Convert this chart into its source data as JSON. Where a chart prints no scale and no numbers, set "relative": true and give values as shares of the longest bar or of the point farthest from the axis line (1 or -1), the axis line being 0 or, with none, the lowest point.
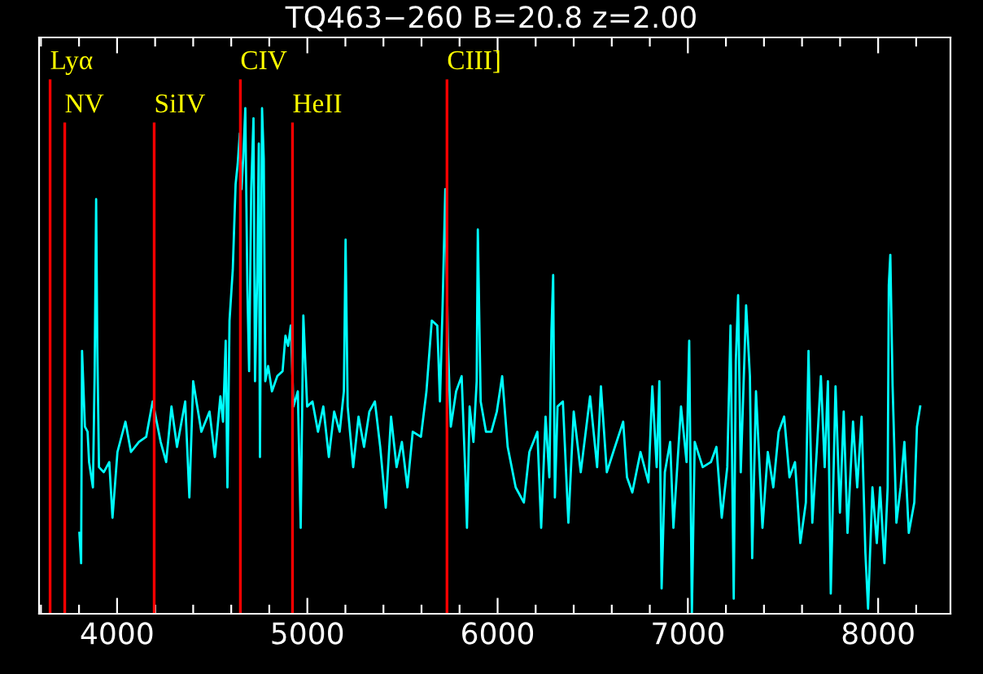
{
  "chart_data": {
    "type": "line",
    "title": "TQ463−260 B=20.8 z=2.00",
    "relative": true,
    "xlim": [
      3590,
      8380
    ],
    "xticks": [
      {
        "value": 3600,
        "label": null
      },
      {
        "value": 3800,
        "label": null
      },
      4000,
      {
        "value": 4200,
        "label": null
      },
      {
        "value": 4400,
        "label": null
      },
      {
        "value": 4600,
        "label": null
      },
      {
        "value": 4800,
        "label": null
      },
      5000,
      {
        "value": 5200,
        "label": null
      },
      {
        "value": 5400,
        "label": null
      },
      {
        "value": 5600,
        "label": null
      },
      {
        "value": 5800,
        "label": null
      },
      6000,
      {
        "value": 6200,
        "label": null
      },
      {
        "value": 6400,
        "label": null
      },
      {
        "value": 6600,
        "label": null
      },
      {
        "value": 6800,
        "label": null
      },
      7000,
      {
        "value": 7200,
        "label": null
      },
      {
        "value": 7400,
        "label": null
      },
      {
        "value": 7600,
        "label": null
      },
      {
        "value": 7800,
        "label": null
      },
      8000,
      {
        "value": 8200,
        "label": null
      }
    ],
    "grid": false,
    "legend": false,
    "marker": "none",
    "line_style": "solid",
    "series": [
      {
        "color": "#00ffff",
        "x": [
          3802,
          3811,
          3816,
          3831,
          3845,
          3853,
          3873,
          3882,
          3890,
          3896,
          3905,
          3930,
          3959,
          3976,
          4002,
          4044,
          4073,
          4115,
          4153,
          4187,
          4229,
          4258,
          4286,
          4315,
          4358,
          4380,
          4400,
          4443,
          4486,
          4514,
          4543,
          4557,
          4571,
          4580,
          4591,
          4608,
          4623,
          4634,
          4645,
          4654,
          4663,
          4674,
          4685,
          4694,
          4705,
          4717,
          4725,
          4737,
          4745,
          4751,
          4762,
          4771,
          4779,
          4794,
          4814,
          4842,
          4870,
          4885,
          4899,
          4913,
          4927,
          4950,
          4965,
          4979,
          4999,
          5027,
          5056,
          5084,
          5113,
          5141,
          5170,
          5192,
          5201,
          5212,
          5241,
          5269,
          5298,
          5326,
          5355,
          5383,
          5412,
          5440,
          5469,
          5497,
          5526,
          5554,
          5597,
          5626,
          5654,
          5683,
          5697,
          5711,
          5725,
          5739,
          5754,
          5782,
          5811,
          5831,
          5839,
          5853,
          5873,
          5890,
          5896,
          5911,
          5939,
          5967,
          5996,
          6024,
          6053,
          6095,
          6138,
          6167,
          6209,
          6229,
          6252,
          6272,
          6283,
          6292,
          6301,
          6315,
          6343,
          6372,
          6400,
          6437,
          6486,
          6523,
          6543,
          6574,
          6608,
          6660,
          6680,
          6708,
          6751,
          6793,
          6813,
          6836,
          6850,
          6862,
          6879,
          6907,
          6924,
          6964,
          6993,
          7007,
          7021,
          7036,
          7078,
          7121,
          7150,
          7178,
          7207,
          7224,
          7241,
          7252,
          7264,
          7278,
          7306,
          7326,
          7338,
          7358,
          7392,
          7420,
          7449,
          7477,
          7506,
          7534,
          7563,
          7591,
          7620,
          7634,
          7654,
          7677,
          7699,
          7719,
          7736,
          7751,
          7776,
          7799,
          7819,
          7839,
          7868,
          7890,
          7913,
          7933,
          7947,
          7970,
          7993,
          8010,
          8033,
          8050,
          8056,
          8064,
          8076,
          8096,
          8118,
          8138,
          8161,
          8190,
          8204,
          8221
        ],
        "values": [
          0.16,
          0.1,
          0.52,
          0.37,
          0.36,
          0.3,
          0.25,
          0.47,
          0.82,
          0.53,
          0.29,
          0.28,
          0.3,
          0.19,
          0.32,
          0.38,
          0.32,
          0.34,
          0.35,
          0.42,
          0.34,
          0.3,
          0.41,
          0.33,
          0.42,
          0.23,
          0.46,
          0.36,
          0.4,
          0.31,
          0.43,
          0.38,
          0.54,
          0.25,
          0.58,
          0.68,
          0.85,
          0.89,
          0.95,
          0.84,
          0.9,
          1.0,
          0.64,
          0.48,
          0.84,
          0.98,
          0.46,
          0.68,
          0.93,
          0.31,
          1.0,
          0.9,
          0.46,
          0.49,
          0.44,
          0.47,
          0.48,
          0.55,
          0.53,
          0.57,
          0.41,
          0.44,
          0.17,
          0.59,
          0.41,
          0.42,
          0.36,
          0.41,
          0.31,
          0.4,
          0.36,
          0.44,
          0.74,
          0.41,
          0.29,
          0.39,
          0.33,
          0.4,
          0.42,
          0.33,
          0.21,
          0.39,
          0.29,
          0.34,
          0.25,
          0.36,
          0.35,
          0.44,
          0.58,
          0.57,
          0.42,
          0.61,
          0.84,
          0.53,
          0.37,
          0.44,
          0.47,
          0.27,
          0.17,
          0.41,
          0.34,
          0.46,
          0.76,
          0.42,
          0.36,
          0.36,
          0.4,
          0.47,
          0.33,
          0.25,
          0.22,
          0.32,
          0.36,
          0.17,
          0.39,
          0.27,
          0.56,
          0.67,
          0.23,
          0.41,
          0.42,
          0.18,
          0.4,
          0.28,
          0.43,
          0.29,
          0.45,
          0.28,
          0.32,
          0.38,
          0.27,
          0.24,
          0.32,
          0.26,
          0.45,
          0.29,
          0.46,
          0.05,
          0.28,
          0.34,
          0.17,
          0.41,
          0.3,
          0.54,
          0.0,
          0.34,
          0.29,
          0.3,
          0.33,
          0.19,
          0.29,
          0.57,
          0.03,
          0.5,
          0.63,
          0.28,
          0.61,
          0.47,
          0.11,
          0.44,
          0.17,
          0.32,
          0.25,
          0.36,
          0.39,
          0.27,
          0.3,
          0.14,
          0.22,
          0.52,
          0.18,
          0.32,
          0.47,
          0.29,
          0.46,
          0.04,
          0.45,
          0.2,
          0.4,
          0.16,
          0.38,
          0.25,
          0.39,
          0.12,
          0.01,
          0.25,
          0.14,
          0.25,
          0.1,
          0.25,
          0.65,
          0.71,
          0.45,
          0.18,
          0.25,
          0.34,
          0.16,
          0.22,
          0.37,
          0.41
        ]
      }
    ],
    "ref_lines": [
      {
        "axis": "x",
        "value": 3648,
        "label": "Lyα",
        "color": "#ff0000"
      },
      {
        "axis": "x",
        "value": 3725,
        "label": "NV",
        "color": "#ff0000"
      },
      {
        "axis": "x",
        "value": 4195,
        "label": "SiIV",
        "color": "#ff0000"
      },
      {
        "axis": "x",
        "value": 4648,
        "label": "CIV",
        "color": "#ff0000"
      },
      {
        "axis": "x",
        "value": 4922,
        "label": "HeII",
        "color": "#ff0000"
      },
      {
        "axis": "x",
        "value": 5734,
        "label": "CIII]",
        "color": "#ff0000"
      }
    ]
  }
}
